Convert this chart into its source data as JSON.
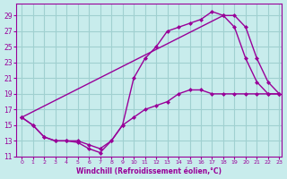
{
  "background_color": "#c8ecec",
  "grid_color": "#a0d0d0",
  "line_color": "#990099",
  "marker_color": "#990099",
  "xlabel": "Windchill (Refroidissement éolien,°C)",
  "xlabel_color": "#990099",
  "tick_color": "#990099",
  "xlim": [
    -0.5,
    23.2
  ],
  "ylim": [
    11,
    30.5
  ],
  "yticks": [
    11,
    13,
    15,
    17,
    19,
    21,
    23,
    25,
    27,
    29
  ],
  "xticks": [
    0,
    1,
    2,
    3,
    4,
    5,
    6,
    7,
    8,
    9,
    10,
    11,
    12,
    13,
    14,
    15,
    16,
    17,
    18,
    19,
    20,
    21,
    22,
    23
  ],
  "line1_x": [
    0,
    1,
    2,
    3,
    4,
    5,
    6,
    7,
    8,
    9,
    10,
    11,
    12,
    13,
    14,
    15,
    16,
    17,
    18,
    19,
    20,
    21,
    22,
    23
  ],
  "line1_y": [
    16,
    15,
    13.5,
    13,
    13,
    12.8,
    12,
    11.5,
    13,
    15,
    16,
    17,
    17.5,
    18,
    19,
    19.5,
    19.5,
    19,
    19,
    19,
    19,
    19,
    19,
    19
  ],
  "line2_x": [
    0,
    1,
    2,
    3,
    4,
    5,
    6,
    7,
    8,
    9,
    10,
    11,
    12,
    13,
    14,
    15,
    16,
    17,
    18,
    19,
    20,
    21,
    22,
    23
  ],
  "line2_y": [
    16,
    15,
    13.5,
    13,
    13,
    13,
    12.5,
    12,
    13,
    15.0,
    21,
    23.5,
    25,
    27,
    27.5,
    28,
    28.5,
    29.5,
    29,
    27.5,
    23.5,
    20.5,
    19,
    19
  ],
  "line3_x": [
    0,
    18,
    19,
    20,
    21,
    22,
    23
  ],
  "line3_y": [
    16,
    29,
    29,
    27.5,
    23.5,
    20.5,
    19
  ]
}
